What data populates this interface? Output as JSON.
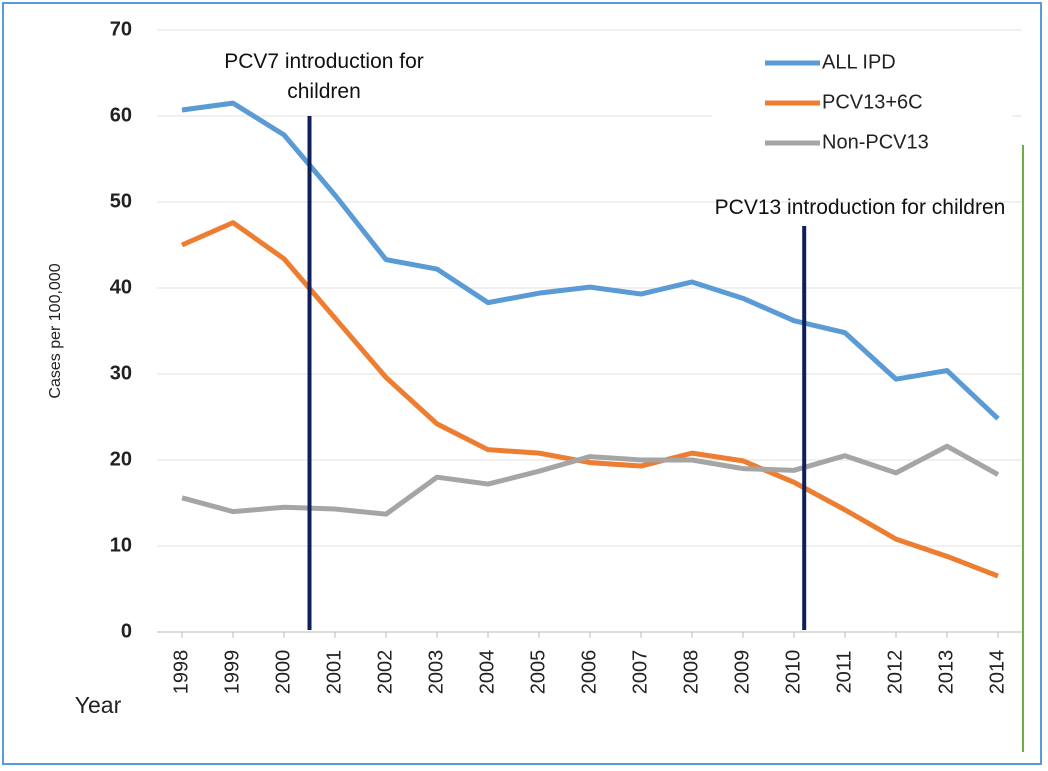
{
  "chart_data": {
    "type": "line",
    "y_label": "Cases per 100,000",
    "x_label": "Year",
    "x": [
      1998,
      1999,
      2000,
      2001,
      2002,
      2003,
      2004,
      2005,
      2006,
      2007,
      2008,
      2009,
      2010,
      2011,
      2012,
      2013,
      2014
    ],
    "series": [
      {
        "name": "ALL IPD",
        "color": "#5b9bd5",
        "values": [
          60.7,
          61.5,
          57.8,
          50.8,
          43.3,
          42.2,
          38.3,
          39.4,
          40.1,
          39.3,
          40.7,
          38.8,
          36.2,
          34.8,
          29.4,
          30.4,
          24.8
        ]
      },
      {
        "name": "PCV13+6C",
        "color": "#ed7d31",
        "values": [
          45.0,
          47.6,
          43.4,
          36.5,
          29.6,
          24.2,
          21.2,
          20.8,
          19.7,
          19.3,
          20.8,
          19.9,
          17.4,
          14.2,
          10.8,
          8.8,
          6.5
        ]
      },
      {
        "name": "Non-PCV13",
        "color": "#a5a5a5",
        "values": [
          15.6,
          14.0,
          14.5,
          14.3,
          13.7,
          18.0,
          17.2,
          18.7,
          20.4,
          20.0,
          20.0,
          19.0,
          18.8,
          20.5,
          18.5,
          21.6,
          18.3
        ]
      }
    ],
    "annotations": [
      {
        "text": "PCV7 introduction for children",
        "x": 2000.5,
        "color": "#0f1f5c"
      },
      {
        "text": "PCV13 introduction for children",
        "x": 2010.2,
        "color": "#0f1f5c"
      }
    ],
    "ylim": [
      0,
      70
    ],
    "yticks": [
      0,
      10,
      20,
      30,
      40,
      50,
      60,
      70
    ],
    "xlim": [
      1998,
      2014
    ],
    "grid": true,
    "legend": "upper right"
  }
}
